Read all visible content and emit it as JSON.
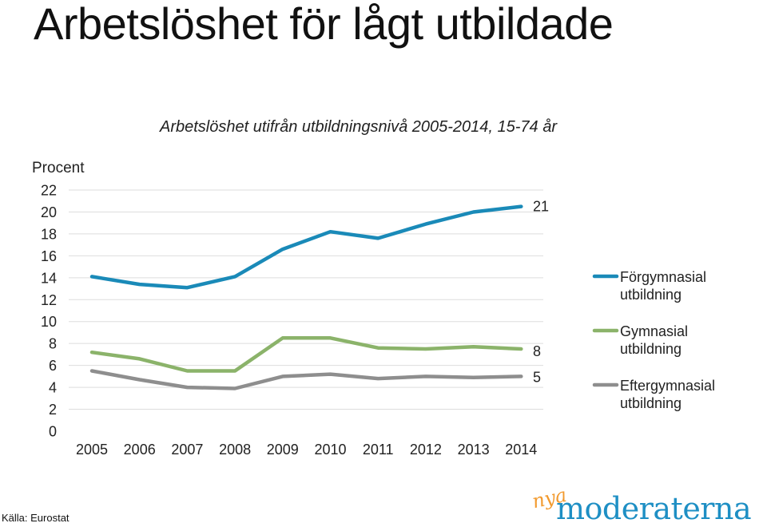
{
  "page": {
    "title": "Arbetslöshet för lågt utbildade",
    "source": "Källa: Eurostat",
    "logo": {
      "prefix": "nya",
      "name": "moderaterna"
    }
  },
  "colors": {
    "series1": "#1a8ab8",
    "series2": "#8bb36a",
    "series3": "#8e8e8e",
    "grid": "#dddddd",
    "logo_orange": "#f29a2e",
    "logo_blue": "#1e8fc4"
  },
  "chart_data": {
    "type": "line",
    "title": "Arbetslöshet utifrån utbildningsnivå 2005-2014, 15-74 år",
    "ylabel": "Procent",
    "xlabel": "",
    "ylim": [
      0,
      22
    ],
    "yticks": [
      0,
      2,
      4,
      6,
      8,
      10,
      12,
      14,
      16,
      18,
      20,
      22
    ],
    "categories": [
      "2005",
      "2006",
      "2007",
      "2008",
      "2009",
      "2010",
      "2011",
      "2012",
      "2013",
      "2014"
    ],
    "grid": true,
    "legend_position": "right",
    "series": [
      {
        "name": "Förgymnasial utbildning",
        "legend_lines": [
          "Förgymnasial",
          "utbildning"
        ],
        "values": [
          14.1,
          13.4,
          13.1,
          14.1,
          16.6,
          18.2,
          17.6,
          18.9,
          20.0,
          20.5
        ],
        "end_label": "21"
      },
      {
        "name": "Gymnasial utbildning",
        "legend_lines": [
          "Gymnasial",
          "utbildning"
        ],
        "values": [
          7.2,
          6.6,
          5.5,
          5.5,
          8.5,
          8.5,
          7.6,
          7.5,
          7.7,
          7.5
        ],
        "end_label": "8"
      },
      {
        "name": "Eftergymnasial utbildning",
        "legend_lines": [
          "Eftergymnasial",
          "utbildning"
        ],
        "values": [
          5.5,
          4.7,
          4.0,
          3.9,
          5.0,
          5.2,
          4.8,
          5.0,
          4.9,
          5.0
        ],
        "end_label": "5"
      }
    ]
  }
}
